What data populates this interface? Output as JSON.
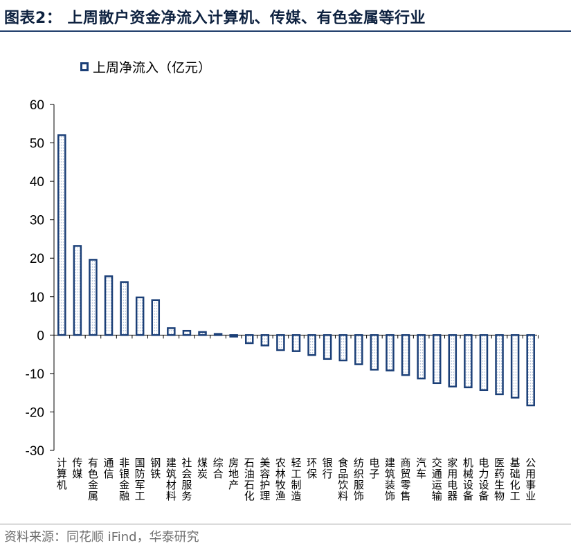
{
  "header": {
    "title": "图表2： 上周散户资金净流入计算机、传媒、有色金属等行业"
  },
  "legend": {
    "label": "上周净流入（亿元）"
  },
  "footer": {
    "source": "资料来源：同花顺 iFind，华泰研究"
  },
  "colors": {
    "bar_border": "#1b3f77",
    "bar_dots": "#9fb3d1",
    "title": "#0e2240",
    "axis": "#000000"
  },
  "chart_data": {
    "type": "bar",
    "title": "",
    "xlabel": "",
    "ylabel": "",
    "ylim": [
      -30,
      60
    ],
    "yticks": [
      60,
      50,
      40,
      30,
      20,
      10,
      0,
      -10,
      -20,
      -30
    ],
    "grid": false,
    "legend_position": "top-left",
    "categories": [
      "计算机",
      "传媒",
      "有色金属",
      "通信",
      "非银金融",
      "国防军工",
      "钢铁",
      "建筑材料",
      "社会服务",
      "煤炭",
      "综合",
      "房地产",
      "石油石化",
      "美容护理",
      "农林牧渔",
      "轻工制造",
      "环保",
      "银行",
      "食品饮料",
      "纺织服饰",
      "电子",
      "建筑装饰",
      "商贸零售",
      "汽车",
      "交通运输",
      "家用电器",
      "机械设备",
      "电力设备",
      "医药生物",
      "基础化工",
      "公用事业"
    ],
    "series": [
      {
        "name": "上周净流入（亿元）",
        "values": [
          52.0,
          23.2,
          19.6,
          15.3,
          13.8,
          9.8,
          9.1,
          1.8,
          1.1,
          0.8,
          0.3,
          -0.4,
          -2.1,
          -2.7,
          -3.9,
          -4.2,
          -5.2,
          -6.2,
          -6.6,
          -7.6,
          -9.0,
          -9.2,
          -10.4,
          -11.3,
          -12.5,
          -13.4,
          -13.6,
          -14.3,
          -15.4,
          -16.3,
          -18.3
        ]
      }
    ]
  }
}
